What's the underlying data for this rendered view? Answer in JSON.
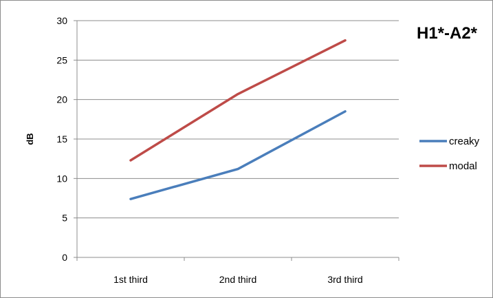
{
  "chart_data": {
    "type": "line",
    "title": "H1*-A2*",
    "xlabel": "",
    "ylabel": "dB",
    "categories": [
      "1st third",
      "2nd third",
      "3rd third"
    ],
    "series": [
      {
        "name": "creaky",
        "color": "#4a7ebb",
        "values": [
          7.4,
          11.2,
          18.5
        ]
      },
      {
        "name": "modal",
        "color": "#be4b48",
        "values": [
          12.3,
          20.7,
          27.5
        ]
      }
    ],
    "ylim": [
      0,
      30
    ],
    "yticks": [
      0,
      5,
      10,
      15,
      20,
      25,
      30
    ],
    "grid": true,
    "legend_position": "right"
  }
}
